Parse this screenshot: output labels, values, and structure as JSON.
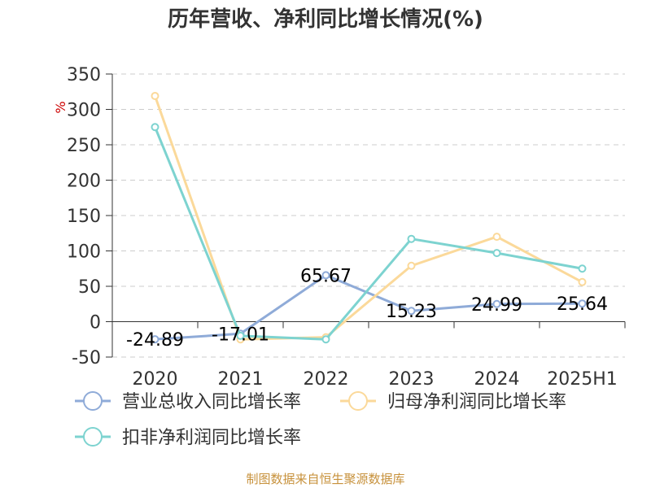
{
  "chart_data": {
    "type": "line",
    "title": "历年营收、净利同比增长情况(%)",
    "unit_label": "%",
    "categories": [
      "2020",
      "2021",
      "2022",
      "2023",
      "2024",
      "2025H1"
    ],
    "ylim": [
      -50,
      350
    ],
    "yticks": [
      -50,
      0,
      50,
      100,
      150,
      200,
      250,
      300,
      350
    ],
    "grid": true,
    "legend_position": "bottom",
    "series": [
      {
        "name": "营业总收入同比增长率",
        "color": "#8fabd8",
        "values": [
          -24.89,
          -17.01,
          65.67,
          15.23,
          24.99,
          25.64
        ],
        "labels": [
          "-24.89",
          "-17.01",
          "65.67",
          "15.23",
          "24.99",
          "25.64"
        ]
      },
      {
        "name": "归母净利润同比增长率",
        "color": "#fbd99a",
        "values": [
          319,
          -25,
          -22,
          79,
          120,
          56
        ]
      },
      {
        "name": "扣非净利润同比增长率",
        "color": "#7dd3d0",
        "values": [
          275,
          -20,
          -25,
          117,
          97,
          75
        ]
      }
    ],
    "source": "制图数据来自恒生聚源数据库"
  }
}
